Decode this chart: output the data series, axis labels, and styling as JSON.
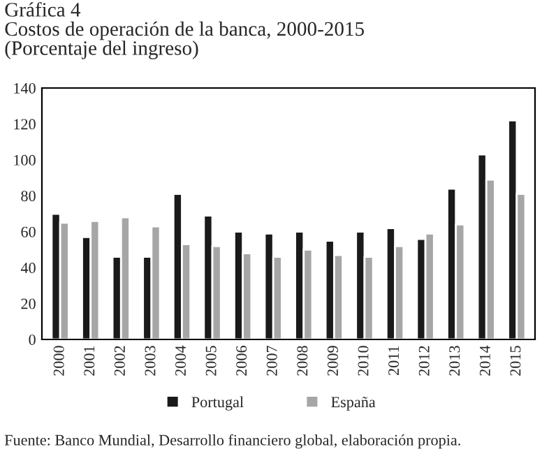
{
  "chart_data": {
    "type": "bar",
    "title": "Gráfica 4\nCostos de operación de la banca, 2000-2015\n(Porcentaje del ingreso)",
    "categories": [
      "2000",
      "2001",
      "2002",
      "2003",
      "2004",
      "2005",
      "2006",
      "2007",
      "2008",
      "2009",
      "2010",
      "2011",
      "2012",
      "2013",
      "2014",
      "2015"
    ],
    "series": [
      {
        "name": "Portugal",
        "color": "#1a1a1a",
        "values": [
          70,
          57,
          46,
          46,
          81,
          69,
          60,
          59,
          60,
          55,
          60,
          62,
          56,
          84,
          103,
          122
        ]
      },
      {
        "name": "España",
        "color": "#a6a6a6",
        "values": [
          65,
          66,
          68,
          63,
          53,
          52,
          48,
          46,
          50,
          47,
          46,
          52,
          59,
          64,
          89,
          81
        ]
      }
    ],
    "ylim": [
      0,
      140
    ],
    "yticks": [
      0,
      20,
      40,
      60,
      80,
      100,
      120,
      140
    ],
    "grid": false,
    "legend": "bottom",
    "annotations": [
      "Fuente: Banco Mundial, Desarrollo financiero global, elaboración propia."
    ]
  }
}
